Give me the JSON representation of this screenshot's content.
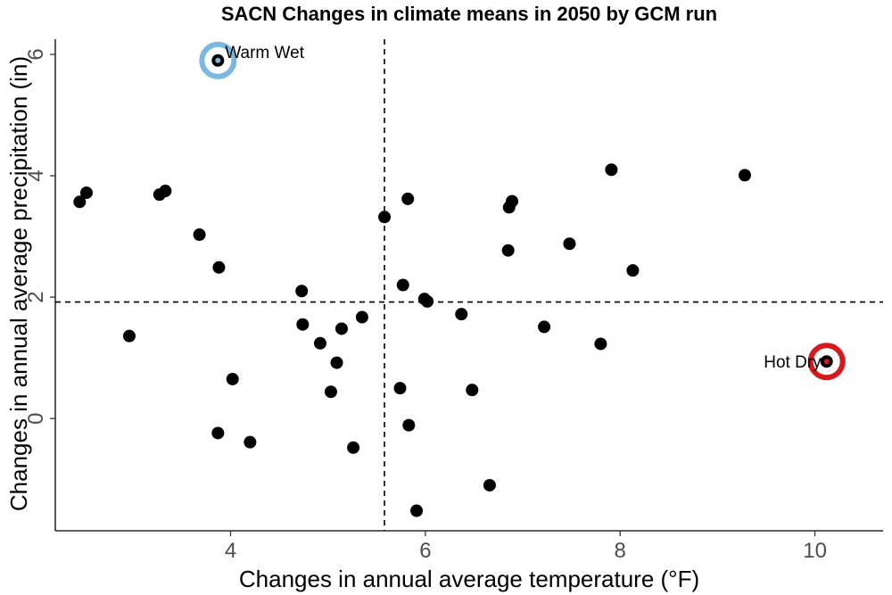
{
  "chart_data": {
    "type": "scatter",
    "title": "SACN Changes in climate means in 2050 by GCM run",
    "xlabel": "Changes in annual average temperature (°F)",
    "ylabel": "Changes in annual average precipitation (in)",
    "xlim": [
      2.2,
      10.7
    ],
    "ylim": [
      -1.85,
      6.25
    ],
    "xticks": [
      4,
      6,
      8,
      10
    ],
    "yticks": [
      0,
      2,
      4,
      6
    ],
    "grid": false,
    "reference_lines": {
      "x": 5.58,
      "y": 1.92
    },
    "point_color": "#000000",
    "points": [
      {
        "x": 2.45,
        "y": 3.57
      },
      {
        "x": 2.52,
        "y": 3.72
      },
      {
        "x": 2.96,
        "y": 1.36
      },
      {
        "x": 3.27,
        "y": 3.69
      },
      {
        "x": 3.33,
        "y": 3.75
      },
      {
        "x": 3.68,
        "y": 3.03
      },
      {
        "x": 3.87,
        "y": -0.24
      },
      {
        "x": 3.88,
        "y": 2.49
      },
      {
        "x": 4.02,
        "y": 0.65
      },
      {
        "x": 4.2,
        "y": -0.39
      },
      {
        "x": 4.73,
        "y": 2.1
      },
      {
        "x": 4.74,
        "y": 1.55
      },
      {
        "x": 4.92,
        "y": 1.24
      },
      {
        "x": 5.03,
        "y": 0.44
      },
      {
        "x": 5.09,
        "y": 0.92
      },
      {
        "x": 5.14,
        "y": 1.48
      },
      {
        "x": 5.26,
        "y": -0.48
      },
      {
        "x": 5.35,
        "y": 1.67
      },
      {
        "x": 5.58,
        "y": 3.32
      },
      {
        "x": 5.74,
        "y": 0.5
      },
      {
        "x": 5.77,
        "y": 2.2
      },
      {
        "x": 5.82,
        "y": 3.62
      },
      {
        "x": 5.83,
        "y": -0.11
      },
      {
        "x": 5.91,
        "y": -1.52
      },
      {
        "x": 5.99,
        "y": 1.97
      },
      {
        "x": 6.02,
        "y": 1.93
      },
      {
        "x": 6.37,
        "y": 1.72
      },
      {
        "x": 6.48,
        "y": 0.47
      },
      {
        "x": 6.66,
        "y": -1.1
      },
      {
        "x": 6.85,
        "y": 2.77
      },
      {
        "x": 6.86,
        "y": 3.48
      },
      {
        "x": 6.89,
        "y": 3.58
      },
      {
        "x": 7.22,
        "y": 1.51
      },
      {
        "x": 7.48,
        "y": 2.88
      },
      {
        "x": 7.8,
        "y": 1.23
      },
      {
        "x": 7.91,
        "y": 4.1
      },
      {
        "x": 8.13,
        "y": 2.44
      },
      {
        "x": 9.28,
        "y": 4.01
      },
      {
        "x": 3.87,
        "y": 5.9
      },
      {
        "x": 10.12,
        "y": 0.94
      }
    ],
    "annotations": [
      {
        "label": "Warm Wet",
        "x": 3.87,
        "y": 5.9,
        "ring_color": "#7ab8e0",
        "anchor": "right"
      },
      {
        "label": "Hot Dry",
        "x": 10.12,
        "y": 0.94,
        "ring_color": "#d7191c",
        "anchor": "left"
      }
    ]
  }
}
